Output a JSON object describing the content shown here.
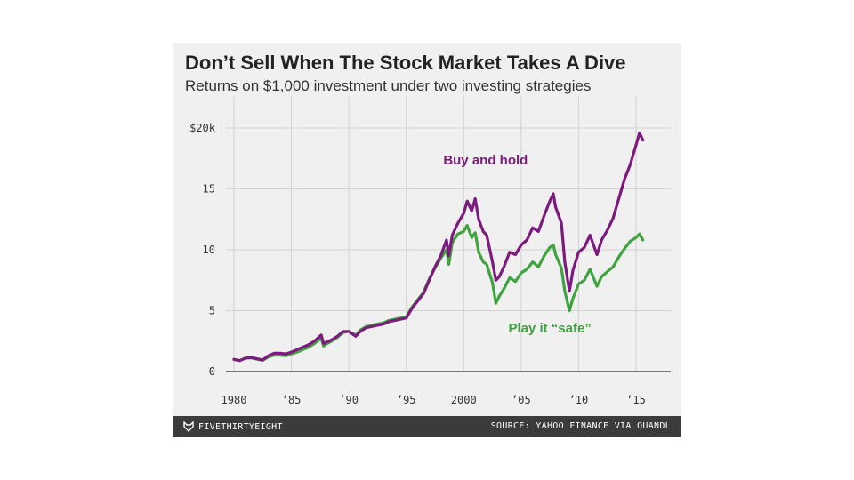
{
  "chart_title": "Don’t Sell When The Stock Market Takes A Dive",
  "chart_subtitle": "Returns on $1,000 investment under two investing strategies",
  "footer": {
    "brand": "FIVETHIRTYEIGHT",
    "source": "SOURCE: YAHOO FINANCE VIA QUANDL"
  },
  "colors": {
    "buy_and_hold": "#7d1a7d",
    "play_it_safe": "#3fa33f",
    "background": "#f0f0f0",
    "footer": "#3b3b3b"
  },
  "chart_data": {
    "type": "line",
    "title": "Don’t Sell When The Stock Market Takes A Dive",
    "subtitle": "Returns on $1,000 investment under two investing strategies",
    "xlabel": "",
    "ylabel": "",
    "xlim": [
      1980,
      2015.6
    ],
    "ylim": [
      0,
      20
    ],
    "grid": true,
    "y_ticks": [
      {
        "value": 0,
        "label": "0"
      },
      {
        "value": 5,
        "label": "5"
      },
      {
        "value": 10,
        "label": "10"
      },
      {
        "value": 15,
        "label": "15"
      },
      {
        "value": 20,
        "label": "$20k"
      }
    ],
    "x_ticks": [
      {
        "value": 1980,
        "label": "1980"
      },
      {
        "value": 1985,
        "label": "’85"
      },
      {
        "value": 1990,
        "label": "’90"
      },
      {
        "value": 1995,
        "label": "’95"
      },
      {
        "value": 2000,
        "label": "2000"
      },
      {
        "value": 2005,
        "label": "’05"
      },
      {
        "value": 2010,
        "label": "’10"
      },
      {
        "value": 2015,
        "label": "’15"
      }
    ],
    "series": [
      {
        "name": "Buy and hold",
        "color": "#7d1a7d",
        "label_anchor": [
          2001.9,
          17.0
        ],
        "points": [
          [
            1980.0,
            1.0
          ],
          [
            1980.5,
            0.9
          ],
          [
            1981.0,
            1.1
          ],
          [
            1981.5,
            1.15
          ],
          [
            1982.0,
            1.05
          ],
          [
            1982.5,
            0.95
          ],
          [
            1983.0,
            1.3
          ],
          [
            1983.5,
            1.5
          ],
          [
            1984.0,
            1.5
          ],
          [
            1984.5,
            1.45
          ],
          [
            1985.0,
            1.6
          ],
          [
            1985.5,
            1.8
          ],
          [
            1986.0,
            2.0
          ],
          [
            1986.5,
            2.2
          ],
          [
            1987.0,
            2.5
          ],
          [
            1987.6,
            3.0
          ],
          [
            1987.8,
            2.3
          ],
          [
            1988.0,
            2.4
          ],
          [
            1988.5,
            2.6
          ],
          [
            1989.0,
            2.9
          ],
          [
            1989.5,
            3.3
          ],
          [
            1990.0,
            3.3
          ],
          [
            1990.6,
            2.9
          ],
          [
            1991.0,
            3.3
          ],
          [
            1991.5,
            3.6
          ],
          [
            1992.0,
            3.7
          ],
          [
            1992.5,
            3.8
          ],
          [
            1993.0,
            3.9
          ],
          [
            1993.5,
            4.1
          ],
          [
            1994.0,
            4.2
          ],
          [
            1994.5,
            4.3
          ],
          [
            1995.0,
            4.4
          ],
          [
            1995.5,
            5.2
          ],
          [
            1996.0,
            5.8
          ],
          [
            1996.5,
            6.4
          ],
          [
            1997.0,
            7.5
          ],
          [
            1997.5,
            8.6
          ],
          [
            1998.0,
            9.5
          ],
          [
            1998.5,
            10.8
          ],
          [
            1998.7,
            9.5
          ],
          [
            1999.0,
            11.2
          ],
          [
            1999.5,
            12.2
          ],
          [
            2000.0,
            13.0
          ],
          [
            2000.3,
            14.0
          ],
          [
            2000.7,
            13.2
          ],
          [
            2001.0,
            14.2
          ],
          [
            2001.3,
            12.5
          ],
          [
            2001.7,
            11.5
          ],
          [
            2002.0,
            11.2
          ],
          [
            2002.5,
            9.0
          ],
          [
            2002.8,
            7.5
          ],
          [
            2003.1,
            7.8
          ],
          [
            2003.5,
            8.6
          ],
          [
            2004.0,
            9.8
          ],
          [
            2004.5,
            9.6
          ],
          [
            2005.0,
            10.4
          ],
          [
            2005.5,
            10.8
          ],
          [
            2006.0,
            11.8
          ],
          [
            2006.5,
            11.5
          ],
          [
            2007.0,
            12.8
          ],
          [
            2007.5,
            14.0
          ],
          [
            2007.8,
            14.6
          ],
          [
            2008.0,
            13.5
          ],
          [
            2008.5,
            12.2
          ],
          [
            2008.8,
            9.0
          ],
          [
            2009.2,
            6.6
          ],
          [
            2009.5,
            8.3
          ],
          [
            2010.0,
            9.8
          ],
          [
            2010.5,
            10.2
          ],
          [
            2011.0,
            11.2
          ],
          [
            2011.6,
            9.6
          ],
          [
            2012.0,
            10.8
          ],
          [
            2012.5,
            11.6
          ],
          [
            2013.0,
            12.6
          ],
          [
            2013.5,
            14.2
          ],
          [
            2014.0,
            15.8
          ],
          [
            2014.5,
            17.0
          ],
          [
            2015.0,
            18.6
          ],
          [
            2015.3,
            19.6
          ],
          [
            2015.6,
            19.0
          ]
        ]
      },
      {
        "name": "Play it “safe”",
        "color": "#3fa33f",
        "label_anchor": [
          2007.5,
          3.2
        ],
        "points": [
          [
            1980.0,
            1.0
          ],
          [
            1980.5,
            0.9
          ],
          [
            1981.0,
            1.1
          ],
          [
            1981.5,
            1.12
          ],
          [
            1982.0,
            1.02
          ],
          [
            1982.5,
            0.92
          ],
          [
            1983.0,
            1.2
          ],
          [
            1983.5,
            1.35
          ],
          [
            1984.0,
            1.35
          ],
          [
            1984.5,
            1.3
          ],
          [
            1985.0,
            1.45
          ],
          [
            1985.5,
            1.6
          ],
          [
            1986.0,
            1.8
          ],
          [
            1986.5,
            2.0
          ],
          [
            1987.0,
            2.3
          ],
          [
            1987.6,
            2.75
          ],
          [
            1987.8,
            2.1
          ],
          [
            1988.0,
            2.25
          ],
          [
            1988.5,
            2.5
          ],
          [
            1989.0,
            2.8
          ],
          [
            1989.5,
            3.2
          ],
          [
            1990.0,
            3.3
          ],
          [
            1990.6,
            3.0
          ],
          [
            1991.0,
            3.4
          ],
          [
            1991.5,
            3.7
          ],
          [
            1992.0,
            3.8
          ],
          [
            1992.5,
            3.9
          ],
          [
            1993.0,
            4.0
          ],
          [
            1993.5,
            4.2
          ],
          [
            1994.0,
            4.3
          ],
          [
            1994.5,
            4.4
          ],
          [
            1995.0,
            4.5
          ],
          [
            1995.5,
            5.3
          ],
          [
            1996.0,
            5.9
          ],
          [
            1996.5,
            6.5
          ],
          [
            1997.0,
            7.6
          ],
          [
            1997.5,
            8.5
          ],
          [
            1998.0,
            9.3
          ],
          [
            1998.5,
            10.0
          ],
          [
            1998.7,
            8.8
          ],
          [
            1999.0,
            10.6
          ],
          [
            1999.5,
            11.3
          ],
          [
            2000.0,
            11.5
          ],
          [
            2000.3,
            12.0
          ],
          [
            2000.7,
            11.0
          ],
          [
            2001.0,
            11.4
          ],
          [
            2001.3,
            9.8
          ],
          [
            2001.7,
            9.0
          ],
          [
            2002.0,
            8.8
          ],
          [
            2002.5,
            7.3
          ],
          [
            2002.8,
            5.6
          ],
          [
            2003.1,
            6.2
          ],
          [
            2003.5,
            6.8
          ],
          [
            2004.0,
            7.7
          ],
          [
            2004.5,
            7.4
          ],
          [
            2005.0,
            8.1
          ],
          [
            2005.5,
            8.4
          ],
          [
            2006.0,
            9.0
          ],
          [
            2006.5,
            8.6
          ],
          [
            2007.0,
            9.5
          ],
          [
            2007.5,
            10.2
          ],
          [
            2007.8,
            10.4
          ],
          [
            2008.0,
            9.6
          ],
          [
            2008.5,
            8.5
          ],
          [
            2008.8,
            6.6
          ],
          [
            2009.2,
            5.0
          ],
          [
            2009.5,
            6.0
          ],
          [
            2010.0,
            7.2
          ],
          [
            2010.5,
            7.5
          ],
          [
            2011.0,
            8.4
          ],
          [
            2011.6,
            7.0
          ],
          [
            2012.0,
            7.8
          ],
          [
            2012.5,
            8.2
          ],
          [
            2013.0,
            8.6
          ],
          [
            2013.5,
            9.4
          ],
          [
            2014.0,
            10.1
          ],
          [
            2014.5,
            10.7
          ],
          [
            2015.0,
            11.0
          ],
          [
            2015.3,
            11.3
          ],
          [
            2015.6,
            10.8
          ]
        ]
      }
    ]
  }
}
